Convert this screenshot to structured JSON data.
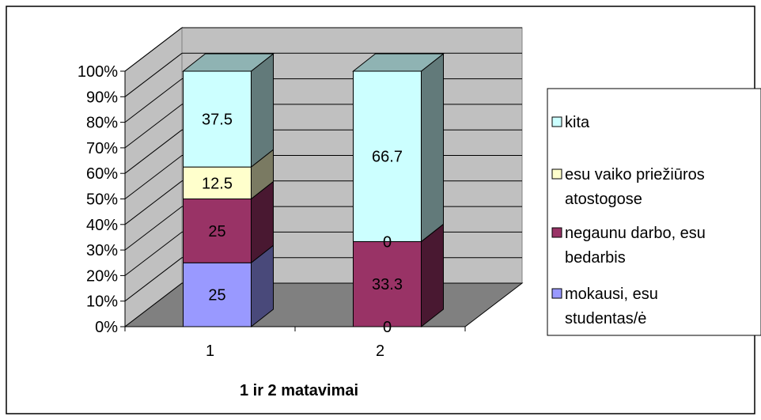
{
  "chart_data": {
    "type": "bar",
    "stacked": "percent",
    "style": "3d",
    "categories": [
      "1",
      "2"
    ],
    "series": [
      {
        "name": "mokausi, esu studentas/ė",
        "values": [
          25,
          0
        ],
        "labels": [
          "25",
          "0"
        ],
        "color": "#9999ff"
      },
      {
        "name": "negaunu darbo, esu bedarbis",
        "values": [
          25,
          33.3
        ],
        "labels": [
          "25",
          "33.3"
        ],
        "color": "#993366"
      },
      {
        "name": "esu vaiko priežiūros atostogose",
        "values": [
          12.5,
          0
        ],
        "labels": [
          "12.5",
          "0"
        ],
        "color": "#ffffcc"
      },
      {
        "name": "kita",
        "values": [
          37.5,
          66.7
        ],
        "labels": [
          "37.5",
          "66.7"
        ],
        "color": "#ccffff"
      }
    ],
    "legend_lines": [
      [
        "kita"
      ],
      [
        "esu vaiko priežiūros",
        "atostogose"
      ],
      [
        "negaunu darbo, esu",
        "bedarbis"
      ],
      [
        "mokausi, esu",
        "studentas/ė"
      ]
    ],
    "xlabel": "1 ir 2 matavimai",
    "ylabel": "",
    "ylim": [
      0,
      100
    ],
    "yticks": [
      "0%",
      "10%",
      "20%",
      "30%",
      "40%",
      "50%",
      "60%",
      "70%",
      "80%",
      "90%",
      "100%"
    ],
    "grid": true,
    "legend_position": "right",
    "colors": {
      "wall": "#c0c0c0",
      "floor": "#808080"
    }
  }
}
